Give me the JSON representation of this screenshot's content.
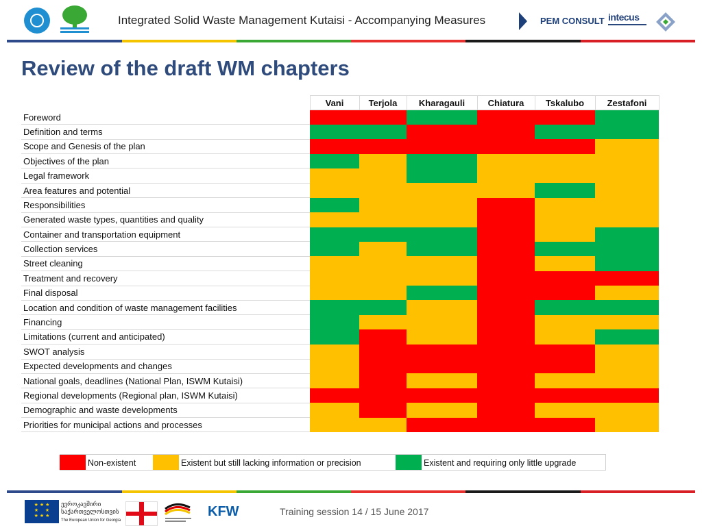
{
  "header": {
    "title": "Integrated Solid Waste Management Kutaisi - Accompanying Measures",
    "partner_text": "PEM CONSULT",
    "partner2_text": "intecus"
  },
  "page": {
    "title": "Review of the draft WM chapters"
  },
  "colors": {
    "red": "#ff0000",
    "yellow": "#ffc000",
    "green": "#00b050"
  },
  "table": {
    "columns": [
      "Vani",
      "Terjola",
      "Kharagauli",
      "Chiatura",
      "Tskalubo",
      "Zestafoni"
    ],
    "rows": [
      {
        "label": "Foreword",
        "status": [
          "R",
          "R",
          "G",
          "R",
          "R",
          "G"
        ]
      },
      {
        "label": "Definition and terms",
        "status": [
          "G",
          "G",
          "R",
          "R",
          "G",
          "G"
        ]
      },
      {
        "label": "Scope and Genesis of the plan",
        "status": [
          "R",
          "R",
          "R",
          "R",
          "R",
          "Y"
        ]
      },
      {
        "label": "Objectives of the plan",
        "status": [
          "G",
          "Y",
          "G",
          "Y",
          "Y",
          "Y"
        ]
      },
      {
        "label": "Legal framework",
        "status": [
          "Y",
          "Y",
          "G",
          "Y",
          "Y",
          "Y"
        ]
      },
      {
        "label": "Area features and potential",
        "status": [
          "Y",
          "Y",
          "Y",
          "Y",
          "G",
          "Y"
        ]
      },
      {
        "label": "Responsibilities",
        "status": [
          "G",
          "Y",
          "Y",
          "R",
          "Y",
          "Y"
        ]
      },
      {
        "label": "Generated waste types, quantities and quality",
        "status": [
          "Y",
          "Y",
          "Y",
          "R",
          "Y",
          "Y"
        ]
      },
      {
        "label": "Container and transportation equipment",
        "status": [
          "G",
          "G",
          "G",
          "R",
          "Y",
          "G"
        ]
      },
      {
        "label": "Collection services",
        "status": [
          "G",
          "Y",
          "G",
          "R",
          "G",
          "G"
        ]
      },
      {
        "label": "Street cleaning",
        "status": [
          "Y",
          "Y",
          "Y",
          "R",
          "Y",
          "G"
        ]
      },
      {
        "label": "Treatment and recovery",
        "status": [
          "Y",
          "Y",
          "Y",
          "R",
          "R",
          "R"
        ]
      },
      {
        "label": "Final disposal",
        "status": [
          "Y",
          "Y",
          "G",
          "R",
          "R",
          "Y"
        ]
      },
      {
        "label": "Location and condition of waste management facilities",
        "status": [
          "G",
          "G",
          "Y",
          "R",
          "G",
          "G"
        ]
      },
      {
        "label": "Financing",
        "status": [
          "G",
          "Y",
          "Y",
          "R",
          "Y",
          "Y"
        ]
      },
      {
        "label": "Limitations (current and anticipated)",
        "status": [
          "G",
          "R",
          "Y",
          "R",
          "Y",
          "G"
        ]
      },
      {
        "label": "SWOT analysis",
        "status": [
          "Y",
          "R",
          "R",
          "R",
          "R",
          "Y"
        ]
      },
      {
        "label": "Expected developments and changes",
        "status": [
          "Y",
          "R",
          "R",
          "R",
          "R",
          "Y"
        ]
      },
      {
        "label": "National goals, deadlines (National Plan, ISWM Kutaisi)",
        "status": [
          "Y",
          "R",
          "Y",
          "R",
          "Y",
          "Y"
        ]
      },
      {
        "label": "Regional developments (Regional plan, ISWM Kutaisi)",
        "status": [
          "R",
          "R",
          "R",
          "R",
          "R",
          "R"
        ]
      },
      {
        "label": "Demographic and waste developments",
        "status": [
          "Y",
          "R",
          "Y",
          "R",
          "Y",
          "Y"
        ]
      },
      {
        "label": "Priorities for municipal actions and processes",
        "status": [
          "Y",
          "Y",
          "R",
          "R",
          "R",
          "Y"
        ]
      }
    ]
  },
  "legend": {
    "red": "Non-existent",
    "yellow": "Existent but still lacking information or precision",
    "green": "Existent and requiring only little upgrade"
  },
  "footer": {
    "eu_line1": "ევროკავშირი",
    "eu_line2": "საქართველოსთვის",
    "eu_line3": "The European Union for Georgia",
    "kfw": "KFW",
    "text": "Training session 14 / 15 June 2017"
  }
}
